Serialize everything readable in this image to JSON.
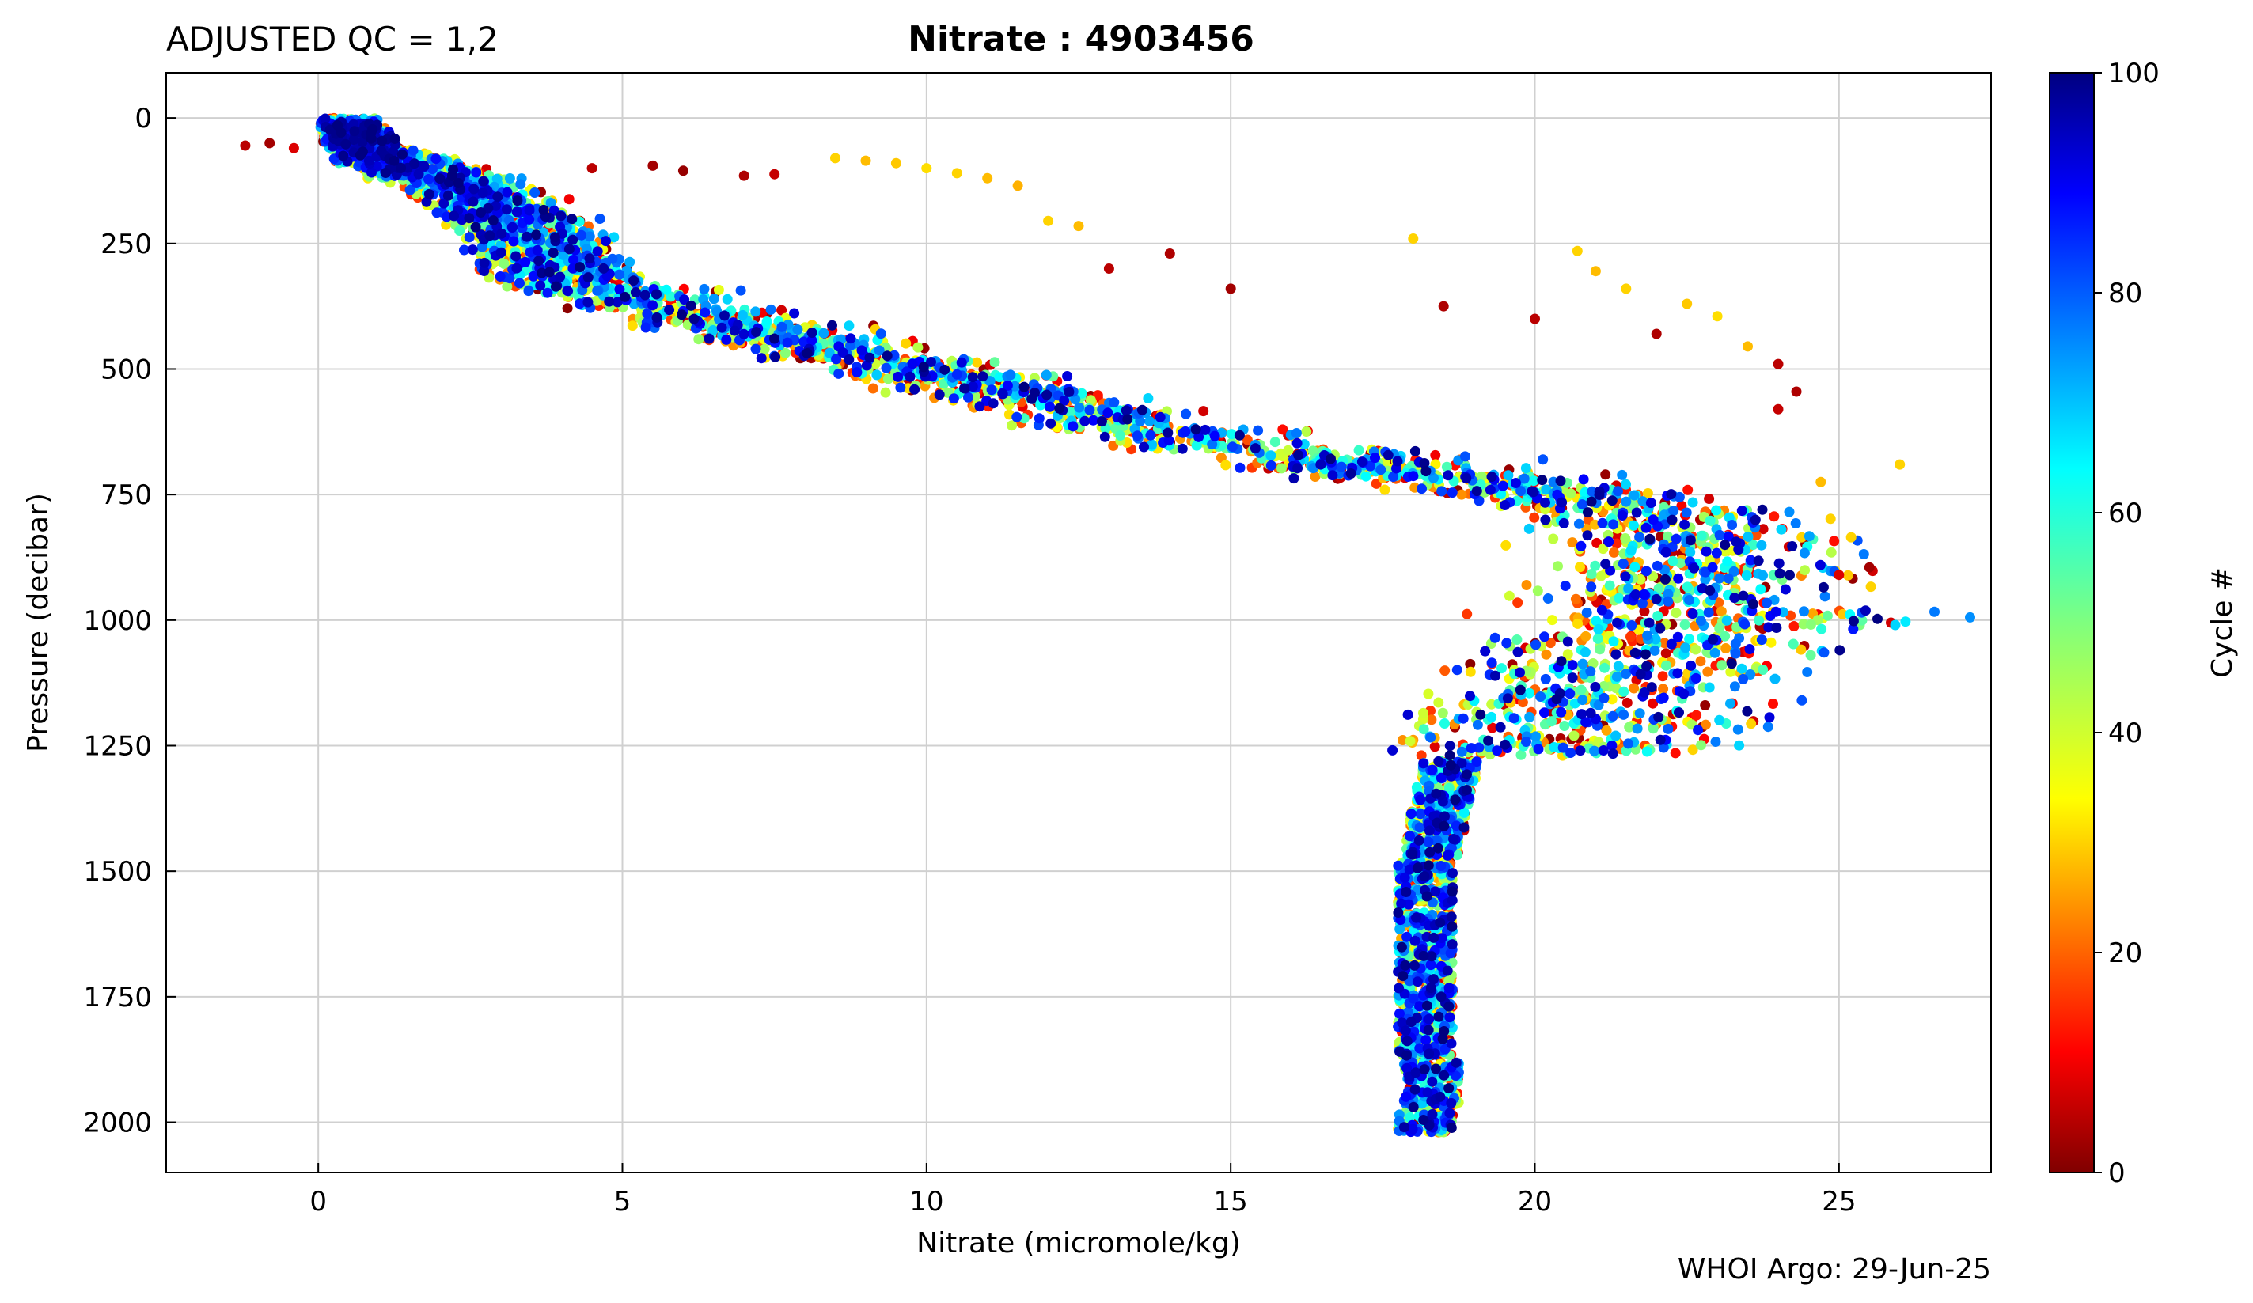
{
  "chart_data": {
    "type": "scatter",
    "title_left": "ADJUSTED QC = 1,2",
    "title_center": "Nitrate : 4903456",
    "xlabel": "Nitrate  (micromole/kg)",
    "ylabel": "Pressure  (decibar)",
    "colorbar_label": "Cycle #",
    "footer": "WHOI Argo: 29-Jun-25",
    "xlim": [
      -2.5,
      27.5
    ],
    "ylim": [
      2100,
      -90
    ],
    "y_inverted": true,
    "x_ticks": [
      0,
      5,
      10,
      15,
      20,
      25
    ],
    "y_ticks": [
      0,
      250,
      500,
      750,
      1000,
      1250,
      1500,
      1750,
      2000
    ],
    "colorbar_ticks": [
      0,
      20,
      40,
      60,
      80,
      100
    ],
    "color_range": [
      0,
      100
    ],
    "colormap": "jet",
    "grid": true,
    "profile_template": [
      [
        0.0,
        0.5
      ],
      [
        5,
        0.5
      ],
      [
        10,
        0.6
      ],
      [
        20,
        0.6
      ],
      [
        30,
        0.6
      ],
      [
        40,
        0.7
      ],
      [
        50,
        0.7
      ],
      [
        60,
        0.8
      ],
      [
        70,
        0.8
      ],
      [
        80,
        1.0
      ],
      [
        90,
        1.3
      ],
      [
        100,
        1.6
      ],
      [
        120,
        2.0
      ],
      [
        140,
        2.4
      ],
      [
        160,
        2.7
      ],
      [
        180,
        3.0
      ],
      [
        200,
        3.2
      ],
      [
        220,
        3.4
      ],
      [
        250,
        3.6
      ],
      [
        280,
        3.8
      ],
      [
        300,
        4.0
      ],
      [
        330,
        4.4
      ],
      [
        360,
        5.3
      ],
      [
        400,
        6.5
      ],
      [
        430,
        7.5
      ],
      [
        460,
        8.5
      ],
      [
        500,
        9.8
      ],
      [
        530,
        10.8
      ],
      [
        560,
        11.8
      ],
      [
        600,
        13.0
      ],
      [
        640,
        14.6
      ],
      [
        680,
        16.6
      ],
      [
        700,
        17.8
      ],
      [
        730,
        19.5
      ],
      [
        760,
        20.8
      ],
      [
        800,
        21.8
      ],
      [
        850,
        22.2
      ],
      [
        900,
        22.3
      ],
      [
        950,
        21.8
      ],
      [
        1000,
        21.0
      ],
      [
        1050,
        20.3
      ],
      [
        1100,
        19.8
      ],
      [
        1150,
        19.3
      ],
      [
        1200,
        19.0
      ],
      [
        1250,
        18.8
      ],
      [
        1300,
        18.6
      ],
      [
        1350,
        18.5
      ],
      [
        1400,
        18.4
      ],
      [
        1450,
        18.3
      ],
      [
        1500,
        18.2
      ],
      [
        1550,
        18.2
      ],
      [
        1600,
        18.2
      ],
      [
        1650,
        18.2
      ],
      [
        1700,
        18.2
      ],
      [
        1750,
        18.2
      ],
      [
        1800,
        18.2
      ],
      [
        1850,
        18.2
      ],
      [
        1900,
        18.3
      ],
      [
        1950,
        18.3
      ],
      [
        2000,
        18.2
      ]
    ],
    "cycles": 100,
    "outliers": [
      [
        -1.2,
        55,
        5
      ],
      [
        -0.8,
        50,
        3
      ],
      [
        -0.4,
        60,
        8
      ],
      [
        4.5,
        100,
        5
      ],
      [
        5.5,
        95,
        3
      ],
      [
        6.0,
        105,
        2
      ],
      [
        7.0,
        115,
        4
      ],
      [
        7.5,
        112,
        6
      ],
      [
        8.5,
        80,
        30
      ],
      [
        9.0,
        85,
        28
      ],
      [
        9.5,
        90,
        29
      ],
      [
        10.0,
        100,
        31
      ],
      [
        10.5,
        110,
        30
      ],
      [
        11.0,
        120,
        28
      ],
      [
        11.5,
        135,
        27
      ],
      [
        12.0,
        205,
        30
      ],
      [
        12.5,
        215,
        28
      ],
      [
        13.0,
        300,
        5
      ],
      [
        14.0,
        270,
        4
      ],
      [
        15.0,
        340,
        3
      ],
      [
        18.0,
        240,
        30
      ],
      [
        18.5,
        375,
        4
      ],
      [
        20.0,
        400,
        5
      ],
      [
        20.7,
        265,
        30
      ],
      [
        21.0,
        305,
        28
      ],
      [
        21.5,
        340,
        30
      ],
      [
        22.0,
        430,
        4
      ],
      [
        22.5,
        370,
        29
      ],
      [
        23.0,
        395,
        31
      ],
      [
        23.5,
        455,
        28
      ],
      [
        24.0,
        490,
        5
      ],
      [
        24.3,
        545,
        4
      ],
      [
        24.0,
        580,
        6
      ],
      [
        26.0,
        690,
        30
      ],
      [
        24.7,
        725,
        28
      ],
      [
        25.2,
        835,
        30
      ],
      [
        25.5,
        895,
        3
      ],
      [
        25.0,
        910,
        8
      ]
    ]
  }
}
